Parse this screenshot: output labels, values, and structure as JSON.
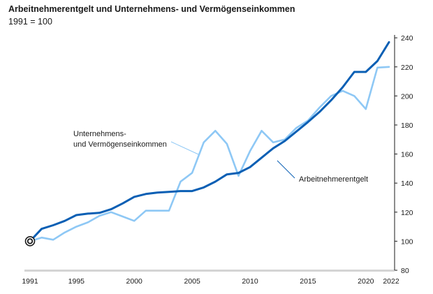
{
  "chart_data": {
    "type": "line",
    "title": "Arbeitnehmerentgelt und Unternehmens- und Vermögenseinkommen",
    "subtitle": "1991 = 100",
    "x": [
      1991,
      1992,
      1993,
      1994,
      1995,
      1996,
      1997,
      1998,
      1999,
      2000,
      2001,
      2002,
      2003,
      2004,
      2005,
      2006,
      2007,
      2008,
      2009,
      2010,
      2011,
      2012,
      2013,
      2014,
      2015,
      2016,
      2017,
      2018,
      2019,
      2020,
      2021,
      2022
    ],
    "series": [
      {
        "name": "Arbeitnehmerentgelt",
        "color": "#0a5fb4",
        "values": [
          100,
          108.5,
          111,
          114,
          118,
          119,
          119.5,
          122,
          126,
          130.5,
          132.5,
          133.5,
          134,
          134.5,
          134.5,
          137,
          141,
          146,
          147,
          151,
          157.5,
          164,
          169,
          175.5,
          182,
          189,
          197,
          206,
          216.5,
          216.5,
          224,
          237
        ]
      },
      {
        "name": "Unternehmens- und Vermögenseinkommen",
        "color": "#8ec8f5",
        "values": [
          100,
          102.5,
          101,
          106,
          110,
          113,
          117.5,
          120,
          117,
          114,
          121,
          121,
          121,
          141,
          147,
          168,
          176,
          167,
          145,
          162,
          176,
          168,
          170,
          178,
          183,
          192,
          200,
          203.5,
          200,
          191,
          219.5,
          220
        ]
      }
    ],
    "annotations": [
      "Unternehmens-",
      "und Vermögenseinkommen",
      "Arbeitnehmerentgelt"
    ],
    "x_tick_labels": [
      "1991",
      "1995",
      "2000",
      "2005",
      "2010",
      "2015",
      "2020",
      "2022"
    ],
    "x_ticks": [
      1991,
      1995,
      2000,
      2005,
      2010,
      2015,
      2020,
      2022
    ],
    "y_ticks": [
      80,
      100,
      120,
      140,
      160,
      180,
      200,
      220,
      240
    ],
    "ylim": [
      80,
      242
    ],
    "xlim": [
      1991,
      2022
    ],
    "y_axis_side": "right",
    "base_marker": {
      "x": 1991,
      "y": 100
    },
    "grid": false
  }
}
